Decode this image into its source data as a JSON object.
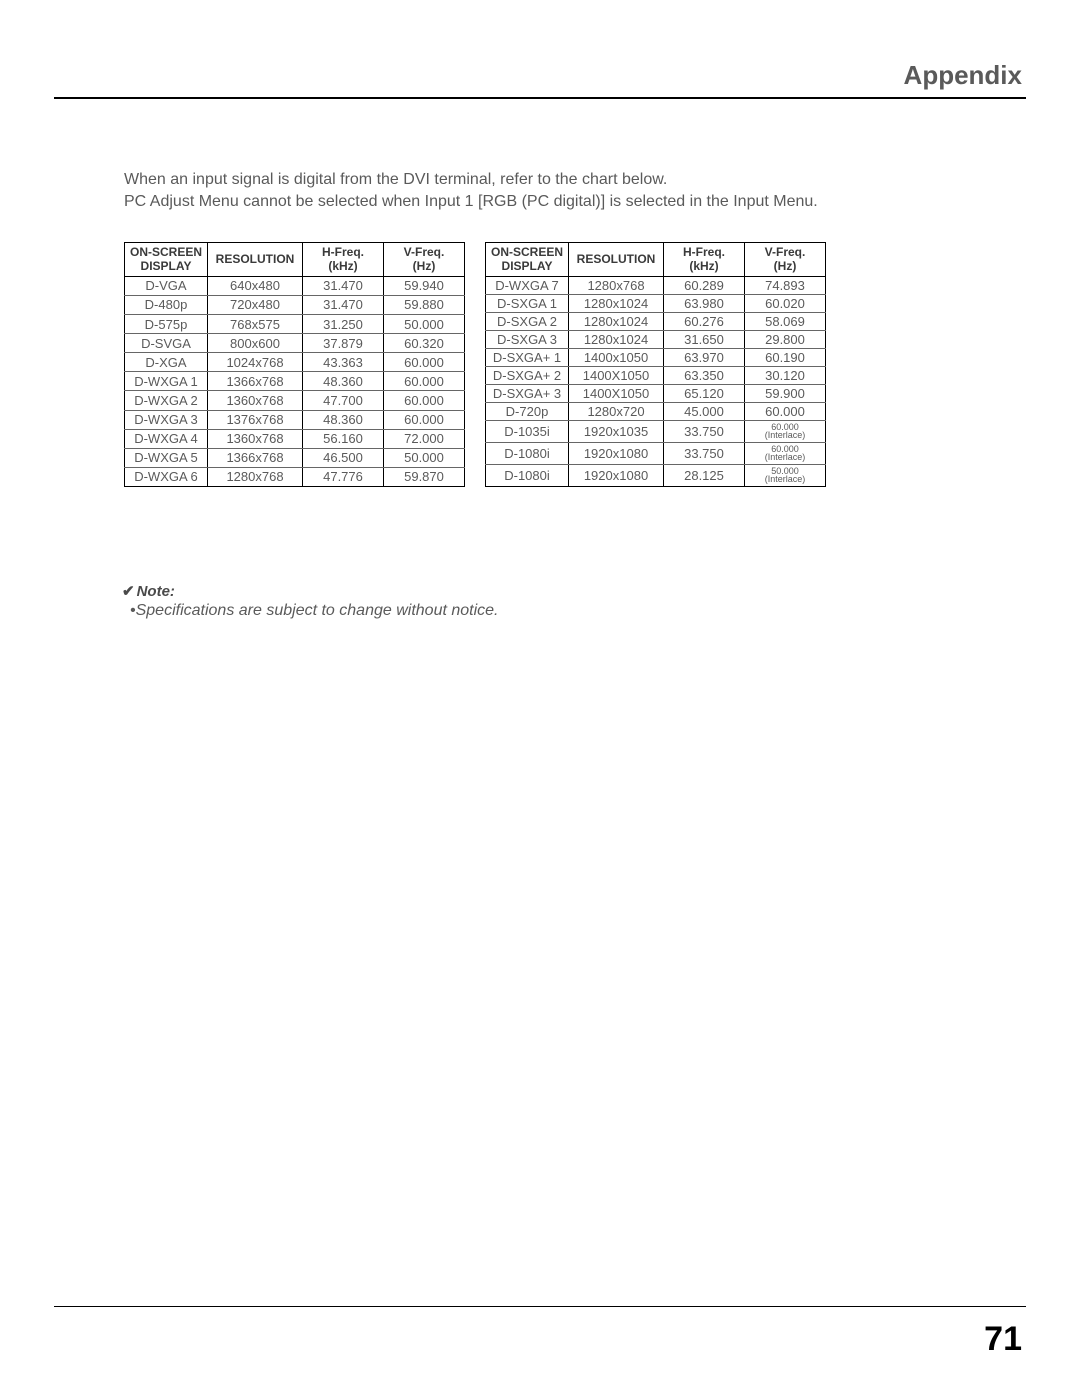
{
  "header": {
    "title": "Appendix"
  },
  "intro": {
    "line1": "When an input signal is digital from the DVI terminal, refer to the chart below.",
    "line2": "PC Adjust Menu cannot be selected when Input 1 [RGB (PC digital)] is selected in the Input Menu."
  },
  "table_headers": {
    "osd_l1": "ON-SCREEN",
    "osd_l2": "DISPLAY",
    "res": "RESOLUTION",
    "hfreq_l1": "H-Freq.",
    "hfreq_l2": "(kHz)",
    "vfreq_l1": "V-Freq.",
    "vfreq_l2": "(Hz)"
  },
  "table_left": {
    "rows": [
      {
        "osd": "D-VGA",
        "res": "640x480",
        "h": "31.470",
        "v": "59.940"
      },
      {
        "osd": "D-480p",
        "res": "720x480",
        "h": "31.470",
        "v": "59.880"
      },
      {
        "osd": "D-575p",
        "res": "768x575",
        "h": "31.250",
        "v": "50.000"
      },
      {
        "osd": "D-SVGA",
        "res": "800x600",
        "h": "37.879",
        "v": "60.320"
      },
      {
        "osd": "D-XGA",
        "res": "1024x768",
        "h": "43.363",
        "v": "60.000"
      },
      {
        "osd": "D-WXGA 1",
        "res": "1366x768",
        "h": "48.360",
        "v": "60.000"
      },
      {
        "osd": "D-WXGA 2",
        "res": "1360x768",
        "h": "47.700",
        "v": "60.000"
      },
      {
        "osd": "D-WXGA 3",
        "res": "1376x768",
        "h": "48.360",
        "v": "60.000"
      },
      {
        "osd": "D-WXGA 4",
        "res": "1360x768",
        "h": "56.160",
        "v": "72.000"
      },
      {
        "osd": "D-WXGA 5",
        "res": "1366x768",
        "h": "46.500",
        "v": "50.000"
      },
      {
        "osd": "D-WXGA 6",
        "res": "1280x768",
        "h": "47.776",
        "v": "59.870"
      }
    ]
  },
  "table_right": {
    "rows": [
      {
        "osd": "D-WXGA 7",
        "res": "1280x768",
        "h": "60.289",
        "v": "74.893"
      },
      {
        "osd": "D-SXGA 1",
        "res": "1280x1024",
        "h": "63.980",
        "v": "60.020"
      },
      {
        "osd": "D-SXGA 2",
        "res": "1280x1024",
        "h": "60.276",
        "v": "58.069"
      },
      {
        "osd": "D-SXGA 3",
        "res": "1280x1024",
        "h": "31.650",
        "v": "29.800"
      },
      {
        "osd": "D-SXGA+ 1",
        "res": "1400x1050",
        "h": "63.970",
        "v": "60.190"
      },
      {
        "osd": "D-SXGA+ 2",
        "res": "1400X1050",
        "h": "63.350",
        "v": "30.120"
      },
      {
        "osd": "D-SXGA+ 3",
        "res": "1400X1050",
        "h": "65.120",
        "v": "59.900"
      },
      {
        "osd": "D-720p",
        "res": "1280x720",
        "h": "45.000",
        "v": "60.000"
      },
      {
        "osd": "D-1035i",
        "res": "1920x1035",
        "h": "33.750",
        "v_small1": "60.000",
        "v_small2": "(Interlace)"
      },
      {
        "osd": "D-1080i",
        "res": "1920x1080",
        "h": "33.750",
        "v_small1": "60.000",
        "v_small2": "(Interlace)"
      },
      {
        "osd": "D-1080i",
        "res": "1920x1080",
        "h": "28.125",
        "v_small1": "50.000",
        "v_small2": "(Interlace)"
      }
    ]
  },
  "note": {
    "check": "✔",
    "label": "Note:",
    "bullet": "•",
    "text": "Specifications are subject to change without notice."
  },
  "page_number": "71"
}
